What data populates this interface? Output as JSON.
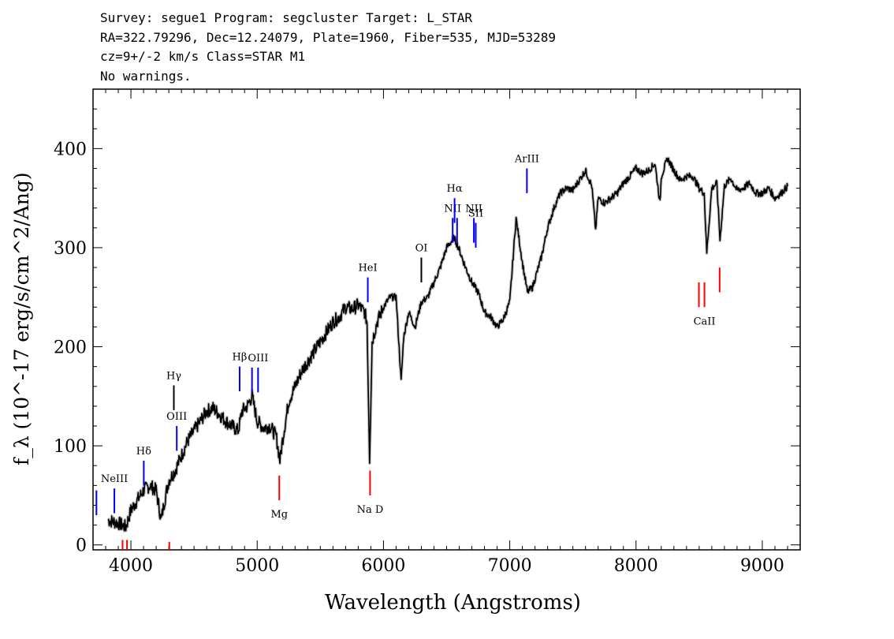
{
  "header": {
    "line1": "Survey: segue1 Program: segcluster Target: L_STAR",
    "line2": "RA=322.79296, Dec=12.24079, Plate=1960, Fiber=535, MJD=53289",
    "line3": "cz=9+/-2 km/s Class=STAR M1",
    "line4": "No warnings."
  },
  "chart_data": {
    "type": "line",
    "xlabel": "Wavelength (Angstroms)",
    "ylabel": "f_λ (10^-17 erg/s/cm^2/Ang)",
    "xlim": [
      3700,
      9300
    ],
    "ylim": [
      -5,
      460
    ],
    "x_ticks": [
      4000,
      5000,
      6000,
      7000,
      8000,
      9000
    ],
    "y_ticks": [
      0,
      100,
      200,
      300,
      400
    ],
    "x_tick_labels": [
      "4000",
      "5000",
      "6000",
      "7000",
      "8000",
      "9000"
    ],
    "y_tick_labels": [
      "0",
      "100",
      "200",
      "300",
      "400"
    ],
    "grid": false,
    "series": [
      {
        "color": "#000000",
        "x": [
          3820,
          3900,
          3960,
          4000,
          4050,
          4100,
          4150,
          4200,
          4240,
          4260,
          4300,
          4350,
          4400,
          4450,
          4500,
          4550,
          4600,
          4650,
          4700,
          4750,
          4800,
          4850,
          4880,
          4920,
          4960,
          5000,
          5050,
          5100,
          5150,
          5180,
          5200,
          5250,
          5300,
          5350,
          5400,
          5450,
          5500,
          5550,
          5600,
          5650,
          5700,
          5750,
          5800,
          5850,
          5870,
          5890,
          5910,
          5950,
          6000,
          6050,
          6100,
          6140,
          6160,
          6200,
          6250,
          6300,
          6350,
          6400,
          6450,
          6500,
          6560,
          6600,
          6650,
          6700,
          6750,
          6800,
          6850,
          6900,
          6950,
          7000,
          7050,
          7100,
          7140,
          7180,
          7250,
          7300,
          7350,
          7400,
          7450,
          7500,
          7550,
          7600,
          7650,
          7680,
          7700,
          7750,
          7800,
          7850,
          7900,
          7950,
          8000,
          8050,
          8100,
          8150,
          8190,
          8200,
          8250,
          8300,
          8350,
          8400,
          8450,
          8500,
          8540,
          8560,
          8600,
          8640,
          8665,
          8700,
          8750,
          8800,
          8850,
          8900,
          8950,
          9000,
          9050,
          9100,
          9150,
          9200
        ],
        "y": [
          25,
          22,
          18,
          35,
          45,
          55,
          60,
          55,
          25,
          40,
          65,
          75,
          90,
          105,
          115,
          125,
          135,
          138,
          132,
          125,
          120,
          115,
          135,
          140,
          150,
          125,
          118,
          120,
          110,
          85,
          105,
          145,
          160,
          175,
          185,
          195,
          205,
          215,
          225,
          230,
          240,
          238,
          242,
          235,
          225,
          86,
          205,
          225,
          240,
          250,
          250,
          165,
          210,
          235,
          220,
          245,
          250,
          265,
          280,
          300,
          310,
          298,
          280,
          265,
          255,
          235,
          230,
          220,
          228,
          245,
          330,
          285,
          255,
          260,
          290,
          320,
          340,
          355,
          360,
          358,
          368,
          378,
          362,
          318,
          350,
          345,
          350,
          355,
          365,
          372,
          380,
          375,
          378,
          385,
          345,
          372,
          390,
          378,
          368,
          372,
          372,
          360,
          355,
          295,
          360,
          365,
          308,
          362,
          370,
          358,
          360,
          365,
          355,
          355,
          360,
          350,
          355,
          362
        ]
      },
      {
        "color": "#bbbbbb",
        "name_hidden": "",
        "x": [],
        "y": []
      }
    ],
    "line_markers": [
      {
        "label": "",
        "x": 3727,
        "color": "#0000ff",
        "y_low": 30,
        "y_high": 55
      },
      {
        "label": "NeIII",
        "x": 3869,
        "color": "#0000ff",
        "y_low": 32,
        "y_high": 57
      },
      {
        "label": "Hδ",
        "x": 4102,
        "color": "#0000ff",
        "y_low": 60,
        "y_high": 85
      },
      {
        "label": "Hγ",
        "x": 4340,
        "color": "#000000",
        "y_low": 136,
        "y_high": 161
      },
      {
        "label": "OIII",
        "x": 4363,
        "color": "#0000ff",
        "y_low": 95,
        "y_high": 120
      },
      {
        "label": "Hβ",
        "x": 4861,
        "color": "#0000ff",
        "y_low": 155,
        "y_high": 180
      },
      {
        "label": "",
        "x": 4959,
        "color": "#0000ff",
        "y_low": 154,
        "y_high": 179
      },
      {
        "label": "OIII",
        "x": 5007,
        "color": "#0000ff",
        "y_low": 154,
        "y_high": 179
      },
      {
        "label": "HeI",
        "x": 5876,
        "color": "#0000ff",
        "y_low": 245,
        "y_high": 270
      },
      {
        "label": "OI",
        "x": 6300,
        "color": "#000000",
        "y_low": 265,
        "y_high": 290
      },
      {
        "label": "NII",
        "x": 6548,
        "color": "#0000ff",
        "y_low": 305,
        "y_high": 330
      },
      {
        "label": "Hα",
        "x": 6563,
        "color": "#0000ff",
        "y_low": 325,
        "y_high": 350
      },
      {
        "label": "",
        "x": 6583,
        "color": "#0000ff",
        "y_low": 305,
        "y_high": 330
      },
      {
        "label": "NII",
        "x": 6716,
        "color": "#0000ff",
        "y_low": 305,
        "y_high": 330
      },
      {
        "label": "SII",
        "x": 6731,
        "color": "#0000ff",
        "y_low": 300,
        "y_high": 325
      },
      {
        "label": "ArIII",
        "x": 7136,
        "color": "#0000ff",
        "y_low": 355,
        "y_high": 380
      },
      {
        "label": "",
        "x": 3934,
        "color": "#ff0000",
        "y_low": -8,
        "y_high": 5
      },
      {
        "label": "",
        "x": 3969,
        "color": "#ff0000",
        "y_low": -8,
        "y_high": 5
      },
      {
        "label": "",
        "x": 4304,
        "color": "#ff0000",
        "y_low": -8,
        "y_high": 3
      },
      {
        "label": "Mg",
        "x": 5175,
        "color": "#ff0000",
        "y_low": 45,
        "y_high": 70
      },
      {
        "label": "Na D",
        "x": 5894,
        "color": "#ff0000",
        "y_low": 50,
        "y_high": 75
      },
      {
        "label": "",
        "x": 8498,
        "color": "#ff0000",
        "y_low": 240,
        "y_high": 265
      },
      {
        "label": "CaII",
        "x": 8542,
        "color": "#ff0000",
        "y_low": 240,
        "y_high": 265
      },
      {
        "label": "",
        "x": 8662,
        "color": "#ff0000",
        "y_low": 255,
        "y_high": 280
      }
    ]
  }
}
